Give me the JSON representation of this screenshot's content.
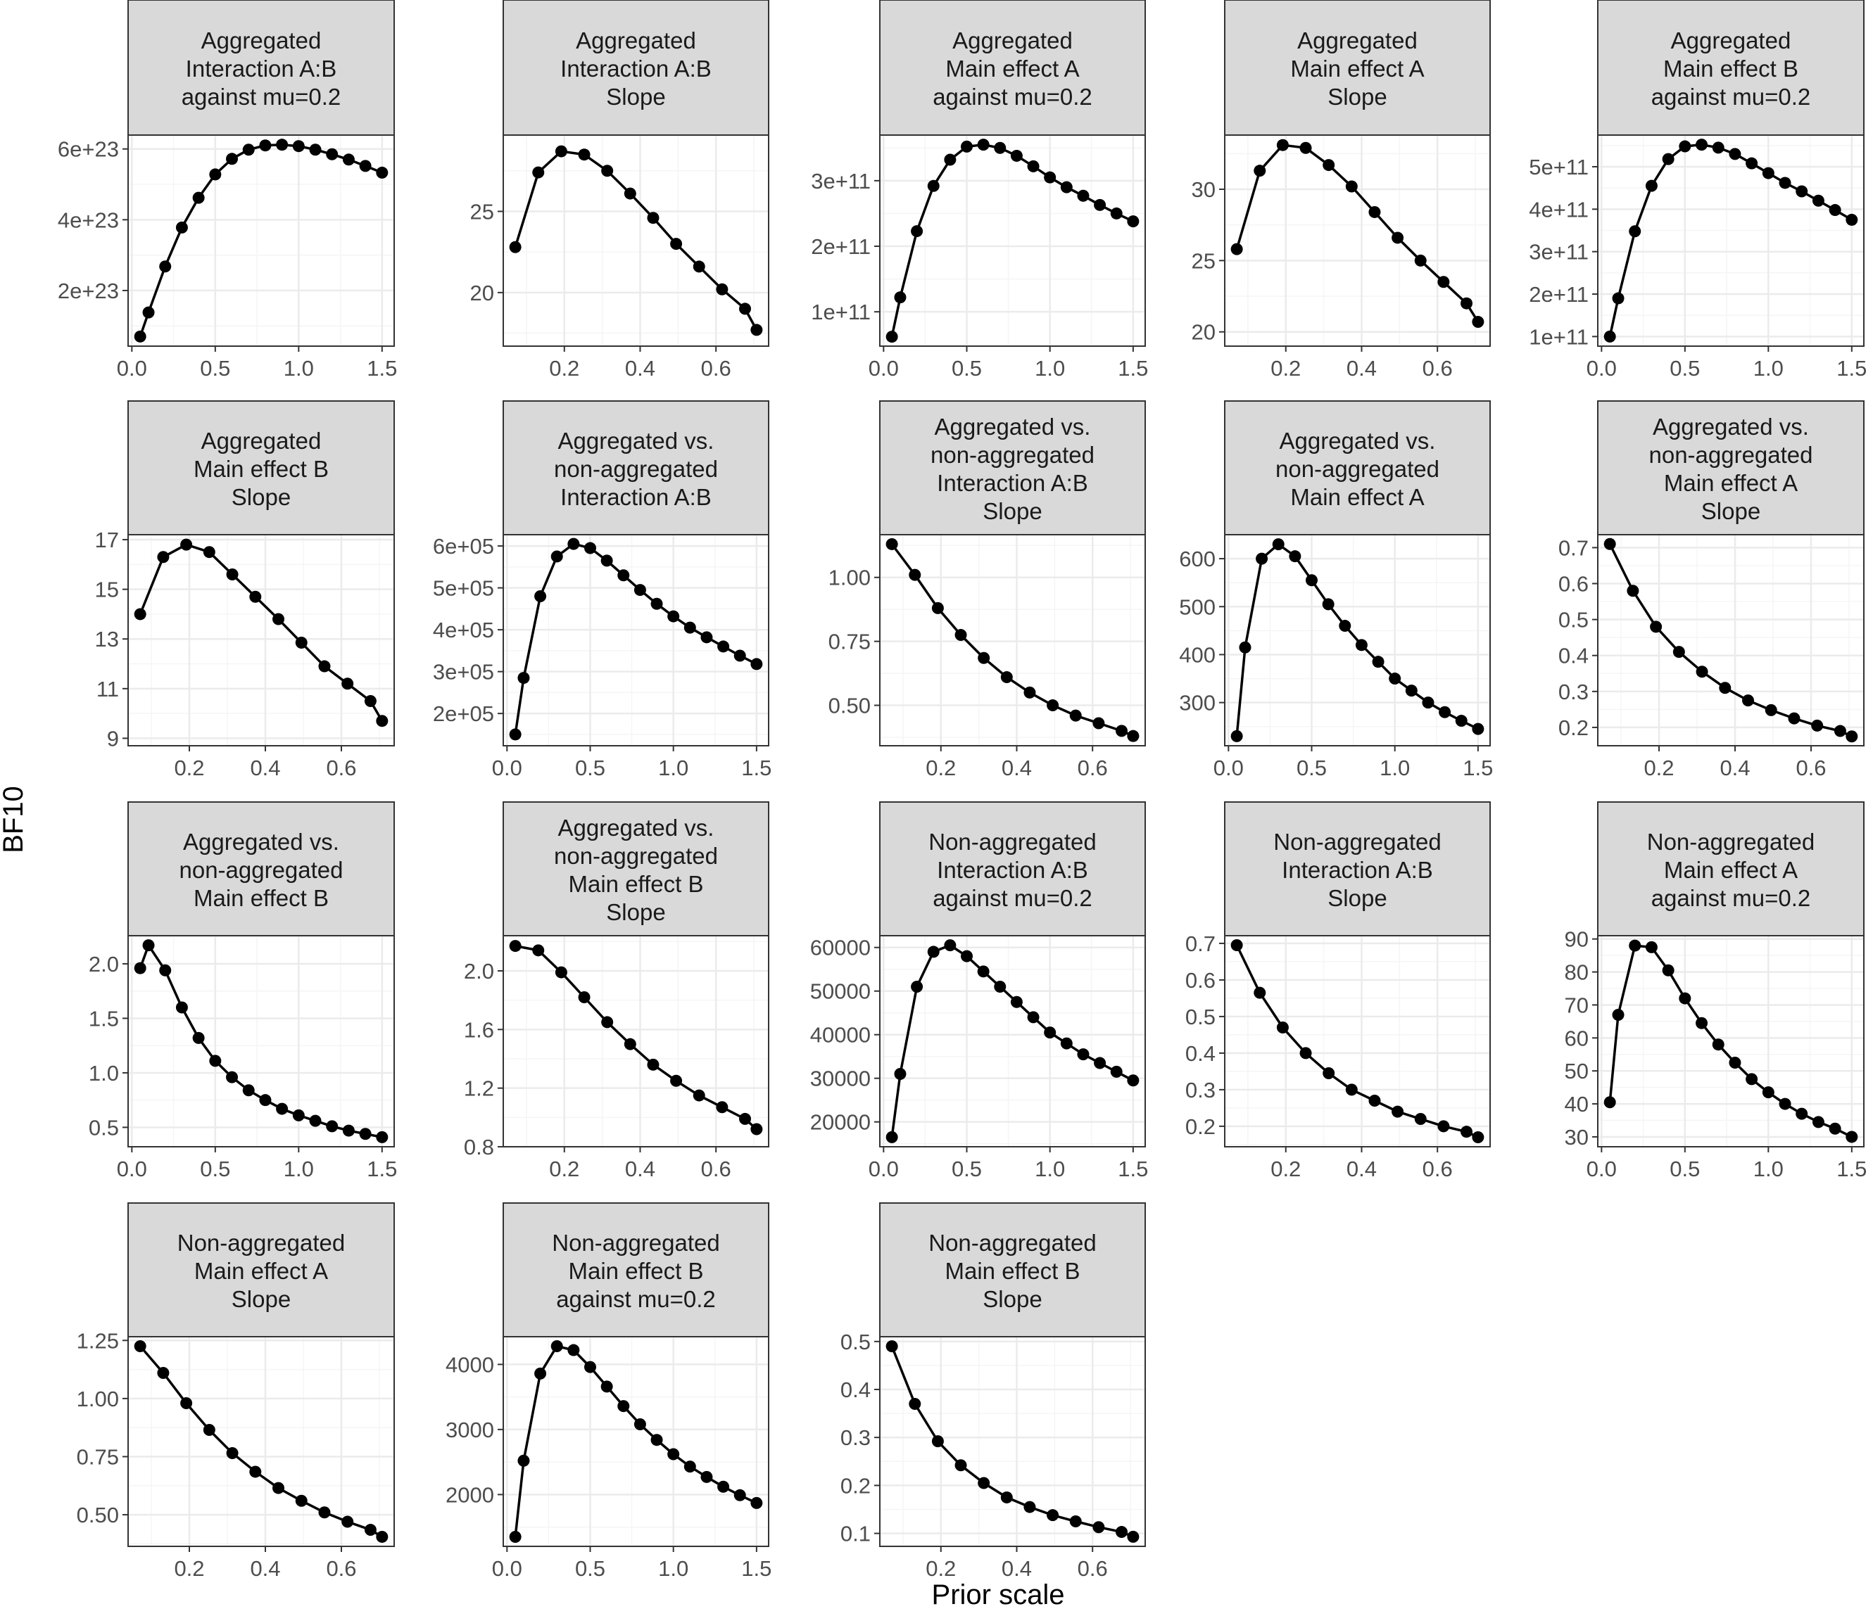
{
  "figure": {
    "xlabel": "Prior scale",
    "ylabel": "BF10"
  },
  "colors": {
    "strip_fill": "#d9d9d9",
    "frame": "#333333",
    "grid_major": "#ebebeb",
    "grid_minor": "#f5f5f5",
    "series": "#000000",
    "tick_text": "#4d4d4d"
  },
  "chart_data": [
    {
      "type": "line",
      "title": "Aggregated\nInteraction A:B\nagainst mu=0.2",
      "x": [
        0.05,
        0.1,
        0.2,
        0.3,
        0.4,
        0.5,
        0.6,
        0.7,
        0.8,
        0.9,
        1.0,
        1.1,
        1.2,
        1.3,
        1.4,
        1.5
      ],
      "y": [
        7e+22,
        1.38e+23,
        2.68e+23,
        3.78e+23,
        4.62e+23,
        5.28e+23,
        5.72e+23,
        5.98e+23,
        6.1e+23,
        6.12e+23,
        6.08e+23,
        5.98e+23,
        5.85e+23,
        5.7e+23,
        5.52e+23,
        5.33e+23
      ],
      "xlim": [
        -0.0225,
        1.5725
      ],
      "ylim": [
        4.28e+22,
        6.392e+23
      ],
      "xticks": [
        0,
        0.5,
        1,
        1.5
      ],
      "xticklabels": [
        "0.0",
        "0.5",
        "1.0",
        "1.5"
      ],
      "yticks": [
        2e+23,
        4e+23,
        6e+23
      ],
      "yticklabels": [
        "2e+23",
        "4e+23",
        "6e+23"
      ]
    },
    {
      "type": "line",
      "title": "Aggregated\nInteraction A:B\nSlope",
      "x": [
        0.0707,
        0.1313,
        0.1919,
        0.2525,
        0.3131,
        0.3737,
        0.4343,
        0.4949,
        0.5555,
        0.6161,
        0.6767,
        0.7071
      ],
      "y": [
        22.8,
        27.4,
        28.7,
        28.5,
        27.5,
        26.1,
        24.6,
        23.0,
        21.6,
        20.2,
        19.0,
        17.7
      ],
      "xlim": [
        0.0389,
        0.7389
      ],
      "ylim": [
        16.7,
        29.7
      ],
      "xticks": [
        0.2,
        0.4,
        0.6
      ],
      "xticklabels": [
        "0.2",
        "0.4",
        "0.6"
      ],
      "yticks": [
        20,
        25
      ],
      "yticklabels": [
        "20",
        "25"
      ]
    },
    {
      "type": "line",
      "title": "Aggregated\nMain effect A\nagainst mu=0.2",
      "x": [
        0.05,
        0.1,
        0.2,
        0.3,
        0.4,
        0.5,
        0.6,
        0.7,
        0.8,
        0.9,
        1.0,
        1.1,
        1.2,
        1.3,
        1.4,
        1.5
      ],
      "y": [
        62000000000.0,
        122000000000.0,
        223000000000.0,
        292000000000.0,
        332000000000.0,
        352000000000.0,
        355000000000.0,
        350000000000.0,
        338000000000.0,
        322000000000.0,
        305000000000.0,
        290000000000.0,
        277000000000.0,
        263000000000.0,
        250000000000.0,
        238000000000.0
      ],
      "xlim": [
        -0.0225,
        1.5725
      ],
      "ylim": [
        47600000000.0,
        369600000000.0
      ],
      "xticks": [
        0,
        0.5,
        1,
        1.5
      ],
      "xticklabels": [
        "0.0",
        "0.5",
        "1.0",
        "1.5"
      ],
      "yticks": [
        100000000000.0,
        200000000000.0,
        300000000000.0
      ],
      "yticklabels": [
        "1e+11",
        "2e+11",
        "3e+11"
      ]
    },
    {
      "type": "line",
      "title": "Aggregated\nMain effect A\nSlope",
      "x": [
        0.0707,
        0.1313,
        0.1919,
        0.2525,
        0.3131,
        0.3737,
        0.4343,
        0.4949,
        0.5555,
        0.6161,
        0.6767,
        0.7071
      ],
      "y": [
        25.8,
        31.3,
        33.1,
        32.9,
        31.7,
        30.2,
        28.4,
        26.6,
        25.0,
        23.5,
        22.0,
        20.7
      ],
      "xlim": [
        0.0389,
        0.7389
      ],
      "ylim": [
        19.0,
        33.8
      ],
      "xticks": [
        0.2,
        0.4,
        0.6
      ],
      "xticklabels": [
        "0.2",
        "0.4",
        "0.6"
      ],
      "yticks": [
        20,
        25,
        30
      ],
      "yticklabels": [
        "20",
        "25",
        "30"
      ]
    },
    {
      "type": "line",
      "title": "Aggregated\nMain effect B\nagainst mu=0.2",
      "x": [
        0.05,
        0.1,
        0.2,
        0.3,
        0.4,
        0.5,
        0.6,
        0.7,
        0.8,
        0.9,
        1.0,
        1.1,
        1.2,
        1.3,
        1.4,
        1.5
      ],
      "y": [
        100000000000.0,
        190000000000.0,
        348000000000.0,
        455000000000.0,
        518000000000.0,
        548000000000.0,
        552000000000.0,
        545000000000.0,
        530000000000.0,
        508000000000.0,
        485000000000.0,
        462000000000.0,
        442000000000.0,
        420000000000.0,
        398000000000.0,
        375000000000.0
      ],
      "xlim": [
        -0.0225,
        1.5725
      ],
      "ylim": [
        77400000000.0,
        574600000000.0
      ],
      "xticks": [
        0,
        0.5,
        1,
        1.5
      ],
      "xticklabels": [
        "0.0",
        "0.5",
        "1.0",
        "1.5"
      ],
      "yticks": [
        100000000000.0,
        200000000000.0,
        300000000000.0,
        400000000000.0,
        500000000000.0
      ],
      "yticklabels": [
        "1e+11",
        "2e+11",
        "3e+11",
        "4e+11",
        "5e+11"
      ]
    },
    {
      "type": "line",
      "title": "Aggregated\nMain effect B\nSlope",
      "x": [
        0.0707,
        0.1313,
        0.1919,
        0.2525,
        0.3131,
        0.3737,
        0.4343,
        0.4949,
        0.5555,
        0.6161,
        0.6767,
        0.7071
      ],
      "y": [
        14.0,
        16.3,
        16.8,
        16.5,
        15.6,
        14.7,
        13.8,
        12.85,
        11.9,
        11.2,
        10.5,
        9.7
      ],
      "xlim": [
        0.0389,
        0.7389
      ],
      "ylim": [
        8.7,
        17.2
      ],
      "xticks": [
        0.2,
        0.4,
        0.6
      ],
      "xticklabels": [
        "0.2",
        "0.4",
        "0.6"
      ],
      "yticks": [
        9,
        11,
        13,
        15,
        17
      ],
      "yticklabels": [
        "9",
        "11",
        "13",
        "15",
        "17"
      ]
    },
    {
      "type": "line",
      "title": "Aggregated vs.\nnon-aggregated\nInteraction A:B",
      "x": [
        0.05,
        0.1,
        0.2,
        0.3,
        0.4,
        0.5,
        0.6,
        0.7,
        0.8,
        0.9,
        1.0,
        1.1,
        1.2,
        1.3,
        1.4,
        1.5
      ],
      "y": [
        150000.0,
        285000.0,
        480000.0,
        575000.0,
        605000.0,
        595000.0,
        565000.0,
        530000.0,
        495000.0,
        462000.0,
        432000.0,
        405000.0,
        382000.0,
        360000.0,
        338000.0,
        318000.0
      ],
      "xlim": [
        -0.0225,
        1.5725
      ],
      "ylim": [
        123000.0,
        627000.0
      ],
      "xticks": [
        0,
        0.5,
        1,
        1.5
      ],
      "xticklabels": [
        "0.0",
        "0.5",
        "1.0",
        "1.5"
      ],
      "yticks": [
        200000.0,
        300000.0,
        400000.0,
        500000.0,
        600000.0
      ],
      "yticklabels": [
        "2e+05",
        "3e+05",
        "4e+05",
        "5e+05",
        "6e+05"
      ]
    },
    {
      "type": "line",
      "title": "Aggregated vs.\nnon-aggregated\nInteraction A:B\nSlope",
      "x": [
        0.0707,
        0.1313,
        0.1919,
        0.2525,
        0.3131,
        0.3737,
        0.4343,
        0.4949,
        0.5555,
        0.6161,
        0.6767,
        0.7071
      ],
      "y": [
        1.13,
        1.01,
        0.88,
        0.775,
        0.685,
        0.61,
        0.55,
        0.5,
        0.46,
        0.43,
        0.4,
        0.38
      ],
      "xlim": [
        0.0389,
        0.7389
      ],
      "ylim": [
        0.342,
        1.167
      ],
      "xticks": [
        0.2,
        0.4,
        0.6
      ],
      "xticklabels": [
        "0.2",
        "0.4",
        "0.6"
      ],
      "yticks": [
        0.5,
        0.75,
        1.0
      ],
      "yticklabels": [
        "0.50",
        "0.75",
        "1.00"
      ]
    },
    {
      "type": "line",
      "title": "Aggregated vs.\nnon-aggregated\nMain effect A",
      "x": [
        0.05,
        0.1,
        0.2,
        0.3,
        0.4,
        0.5,
        0.6,
        0.7,
        0.8,
        0.9,
        1.0,
        1.1,
        1.2,
        1.3,
        1.4,
        1.5
      ],
      "y": [
        230,
        415,
        600,
        630,
        605,
        555,
        505,
        460,
        420,
        385,
        350,
        325,
        300,
        280,
        262,
        245
      ],
      "xlim": [
        -0.0225,
        1.5725
      ],
      "ylim": [
        210,
        650
      ],
      "xticks": [
        0,
        0.5,
        1,
        1.5
      ],
      "xticklabels": [
        "0.0",
        "0.5",
        "1.0",
        "1.5"
      ],
      "yticks": [
        300,
        400,
        500,
        600
      ],
      "yticklabels": [
        "300",
        "400",
        "500",
        "600"
      ]
    },
    {
      "type": "line",
      "title": "Aggregated vs.\nnon-aggregated\nMain effect A\nSlope",
      "x": [
        0.0707,
        0.1313,
        0.1919,
        0.2525,
        0.3131,
        0.3737,
        0.4343,
        0.4949,
        0.5555,
        0.6161,
        0.6767,
        0.7071
      ],
      "y": [
        0.71,
        0.58,
        0.48,
        0.41,
        0.355,
        0.31,
        0.275,
        0.248,
        0.225,
        0.205,
        0.19,
        0.175
      ],
      "xlim": [
        0.0389,
        0.7389
      ],
      "ylim": [
        0.149,
        0.736
      ],
      "xticks": [
        0.2,
        0.4,
        0.6
      ],
      "xticklabels": [
        "0.2",
        "0.4",
        "0.6"
      ],
      "yticks": [
        0.2,
        0.3,
        0.4,
        0.5,
        0.6,
        0.7
      ],
      "yticklabels": [
        "0.2",
        "0.3",
        "0.4",
        "0.5",
        "0.6",
        "0.7"
      ]
    },
    {
      "type": "line",
      "title": "Aggregated vs.\nnon-aggregated\nMain effect B",
      "x": [
        0.05,
        0.1,
        0.2,
        0.3,
        0.4,
        0.5,
        0.6,
        0.7,
        0.8,
        0.9,
        1.0,
        1.1,
        1.2,
        1.3,
        1.4,
        1.5
      ],
      "y": [
        1.96,
        2.17,
        1.94,
        1.6,
        1.32,
        1.11,
        0.96,
        0.84,
        0.75,
        0.67,
        0.61,
        0.56,
        0.51,
        0.47,
        0.44,
        0.41
      ],
      "xlim": [
        -0.0225,
        1.5725
      ],
      "ylim": [
        0.322,
        2.258
      ],
      "xticks": [
        0,
        0.5,
        1,
        1.5
      ],
      "xticklabels": [
        "0.0",
        "0.5",
        "1.0",
        "1.5"
      ],
      "yticks": [
        0.5,
        1.0,
        1.5,
        2.0
      ],
      "yticklabels": [
        "0.5",
        "1.0",
        "1.5",
        "2.0"
      ]
    },
    {
      "type": "line",
      "title": "Aggregated vs.\nnon-aggregated\nMain effect B\nSlope",
      "x": [
        0.0707,
        0.1313,
        0.1919,
        0.2525,
        0.3131,
        0.3737,
        0.4343,
        0.4949,
        0.5555,
        0.6161,
        0.6767,
        0.7071
      ],
      "y": [
        2.17,
        2.14,
        1.99,
        1.82,
        1.65,
        1.5,
        1.36,
        1.25,
        1.15,
        1.07,
        0.99,
        0.92
      ],
      "xlim": [
        0.0389,
        0.7389
      ],
      "ylim": [
        0.8,
        2.24
      ],
      "xticks": [
        0.2,
        0.4,
        0.6
      ],
      "xticklabels": [
        "0.2",
        "0.4",
        "0.6"
      ],
      "yticks": [
        0.8,
        1.2,
        1.6,
        2.0
      ],
      "yticklabels": [
        "0.8",
        "1.2",
        "1.6",
        "2.0"
      ]
    },
    {
      "type": "line",
      "title": "Non-aggregated\nInteraction A:B\nagainst mu=0.2",
      "x": [
        0.05,
        0.1,
        0.2,
        0.3,
        0.4,
        0.5,
        0.6,
        0.7,
        0.8,
        0.9,
        1.0,
        1.1,
        1.2,
        1.3,
        1.4,
        1.5
      ],
      "y": [
        16500,
        31000,
        51000,
        59000,
        60500,
        58000,
        54500,
        51000,
        47500,
        44000,
        40500,
        38000,
        35500,
        33500,
        31500,
        29500
      ],
      "xlim": [
        -0.0225,
        1.5725
      ],
      "ylim": [
        14300,
        62700
      ],
      "xticks": [
        0,
        0.5,
        1,
        1.5
      ],
      "xticklabels": [
        "0.0",
        "0.5",
        "1.0",
        "1.5"
      ],
      "yticks": [
        20000,
        30000,
        40000,
        50000,
        60000
      ],
      "yticklabels": [
        "20000",
        "30000",
        "40000",
        "50000",
        "60000"
      ]
    },
    {
      "type": "line",
      "title": "Non-aggregated\nInteraction A:B\nSlope",
      "x": [
        0.0707,
        0.1313,
        0.1919,
        0.2525,
        0.3131,
        0.3737,
        0.4343,
        0.4949,
        0.5555,
        0.6161,
        0.6767,
        0.7071
      ],
      "y": [
        0.695,
        0.565,
        0.47,
        0.4,
        0.345,
        0.3,
        0.27,
        0.24,
        0.22,
        0.2,
        0.185,
        0.17
      ],
      "xlim": [
        0.0389,
        0.7389
      ],
      "ylim": [
        0.144,
        0.721
      ],
      "xticks": [
        0.2,
        0.4,
        0.6
      ],
      "xticklabels": [
        "0.2",
        "0.4",
        "0.6"
      ],
      "yticks": [
        0.2,
        0.3,
        0.4,
        0.5,
        0.6,
        0.7
      ],
      "yticklabels": [
        "0.2",
        "0.3",
        "0.4",
        "0.5",
        "0.6",
        "0.7"
      ]
    },
    {
      "type": "line",
      "title": "Non-aggregated\nMain effect A\nagainst mu=0.2",
      "x": [
        0.05,
        0.1,
        0.2,
        0.3,
        0.4,
        0.5,
        0.6,
        0.7,
        0.8,
        0.9,
        1.0,
        1.1,
        1.2,
        1.3,
        1.4,
        1.5
      ],
      "y": [
        40.5,
        67,
        88,
        87.5,
        80.5,
        72,
        64.5,
        58,
        52.5,
        47.5,
        43.5,
        40,
        37,
        34.5,
        32.5,
        30
      ],
      "xlim": [
        -0.0225,
        1.5725
      ],
      "ylim": [
        27,
        91
      ],
      "xticks": [
        0,
        0.5,
        1,
        1.5
      ],
      "xticklabels": [
        "0.0",
        "0.5",
        "1.0",
        "1.5"
      ],
      "yticks": [
        30,
        40,
        50,
        60,
        70,
        80,
        90
      ],
      "yticklabels": [
        "30",
        "40",
        "50",
        "60",
        "70",
        "80",
        "90"
      ]
    },
    {
      "type": "line",
      "title": "Non-aggregated\nMain effect A\nSlope",
      "x": [
        0.0707,
        0.1313,
        0.1919,
        0.2525,
        0.3131,
        0.3737,
        0.4343,
        0.4949,
        0.5555,
        0.6161,
        0.6767,
        0.7071
      ],
      "y": [
        1.225,
        1.11,
        0.98,
        0.865,
        0.765,
        0.685,
        0.615,
        0.56,
        0.51,
        0.47,
        0.435,
        0.405
      ],
      "xlim": [
        0.0389,
        0.7389
      ],
      "ylim": [
        0.364,
        1.266
      ],
      "xticks": [
        0.2,
        0.4,
        0.6
      ],
      "xticklabels": [
        "0.2",
        "0.4",
        "0.6"
      ],
      "yticks": [
        0.5,
        0.75,
        1.0,
        1.25
      ],
      "yticklabels": [
        "0.50",
        "0.75",
        "1.00",
        "1.25"
      ]
    },
    {
      "type": "line",
      "title": "Non-aggregated\nMain effect B\nagainst mu=0.2",
      "x": [
        0.05,
        0.1,
        0.2,
        0.3,
        0.4,
        0.5,
        0.6,
        0.7,
        0.8,
        0.9,
        1.0,
        1.1,
        1.2,
        1.3,
        1.4,
        1.5
      ],
      "y": [
        1350,
        2520,
        3860,
        4280,
        4220,
        3960,
        3660,
        3360,
        3080,
        2840,
        2620,
        2430,
        2270,
        2120,
        1990,
        1870
      ],
      "xlim": [
        -0.0225,
        1.5725
      ],
      "ylim": [
        1204,
        4426
      ],
      "xticks": [
        0,
        0.5,
        1,
        1.5
      ],
      "xticklabels": [
        "0.0",
        "0.5",
        "1.0",
        "1.5"
      ],
      "yticks": [
        2000,
        3000,
        4000
      ],
      "yticklabels": [
        "2000",
        "3000",
        "4000"
      ]
    },
    {
      "type": "line",
      "title": "Non-aggregated\nMain effect B\nSlope",
      "x": [
        0.0707,
        0.1313,
        0.1919,
        0.2525,
        0.3131,
        0.3737,
        0.4343,
        0.4949,
        0.5555,
        0.6161,
        0.6767,
        0.7071
      ],
      "y": [
        0.49,
        0.37,
        0.292,
        0.242,
        0.205,
        0.175,
        0.155,
        0.138,
        0.125,
        0.113,
        0.103,
        0.093
      ],
      "xlim": [
        0.0389,
        0.7389
      ],
      "ylim": [
        0.073,
        0.51
      ],
      "xticks": [
        0.2,
        0.4,
        0.6
      ],
      "xticklabels": [
        "0.2",
        "0.4",
        "0.6"
      ],
      "yticks": [
        0.1,
        0.2,
        0.3,
        0.4,
        0.5
      ],
      "yticklabels": [
        "0.1",
        "0.2",
        "0.3",
        "0.4",
        "0.5"
      ]
    }
  ]
}
